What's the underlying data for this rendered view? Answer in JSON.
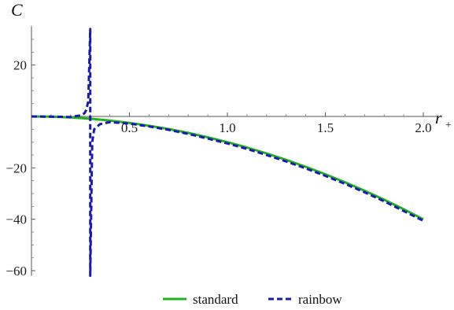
{
  "chart_data": {
    "type": "line",
    "xlabel": "r",
    "xlabel_sub": "+",
    "ylabel": "C",
    "xlim": [
      0.0,
      2.05
    ],
    "ylim": [
      -62,
      34
    ],
    "x_ticks": [
      0.5,
      1.0,
      1.5,
      2.0
    ],
    "x_tick_labels": [
      "0.5",
      "1.0",
      "1.5",
      "2.0"
    ],
    "y_ticks": [
      20,
      -20,
      -40,
      -60
    ],
    "y_tick_labels": [
      "20",
      "−20",
      "−40",
      "−60"
    ],
    "grid": false,
    "legend_position": "bottom-center",
    "series": [
      {
        "name": "standard",
        "color": "#22b022",
        "style": "solid",
        "x": [
          0.0,
          0.1,
          0.2,
          0.3,
          0.4,
          0.5,
          0.6,
          0.7,
          0.8,
          0.9,
          1.0,
          1.1,
          1.2,
          1.3,
          1.4,
          1.5,
          1.6,
          1.7,
          1.8,
          1.9,
          2.0
        ],
        "values": [
          0.0,
          -0.1,
          -0.4,
          -0.9,
          -1.6,
          -2.5,
          -3.6,
          -4.9,
          -6.4,
          -8.1,
          -10.0,
          -12.1,
          -14.4,
          -16.9,
          -19.6,
          -22.5,
          -25.6,
          -28.9,
          -32.4,
          -36.1,
          -40.0
        ]
      },
      {
        "name": "rainbow",
        "color": "#1a1ab0",
        "style": "dashed",
        "x": [
          0.0,
          0.1,
          0.2,
          0.25,
          0.27,
          0.28,
          0.29,
          0.3,
          0.3,
          0.31,
          0.32,
          0.35,
          0.4,
          0.5,
          0.6,
          0.7,
          0.8,
          0.9,
          1.0,
          1.1,
          1.2,
          1.3,
          1.4,
          1.5,
          1.6,
          1.7,
          1.8,
          1.9,
          2.0
        ],
        "values": [
          0.0,
          -0.1,
          -0.2,
          0.4,
          1.2,
          2.5,
          6.0,
          34.0,
          -62.0,
          -10.0,
          -5.0,
          -3.0,
          -2.2,
          -2.8,
          -3.9,
          -5.2,
          -6.8,
          -8.6,
          -10.5,
          -12.6,
          -15.0,
          -17.5,
          -20.2,
          -23.1,
          -26.2,
          -29.5,
          -33.0,
          -36.8,
          -40.6
        ]
      }
    ]
  }
}
